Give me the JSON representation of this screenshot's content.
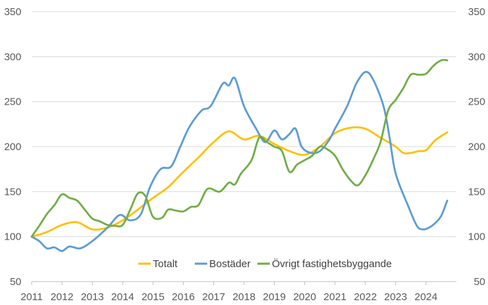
{
  "chart_data": {
    "type": "line",
    "title": "",
    "xlabel": "",
    "ylabel": "",
    "ylim": [
      50,
      350
    ],
    "y_ticks": [
      50,
      100,
      150,
      200,
      250,
      300,
      350
    ],
    "y_ticks_right": [
      50,
      100,
      150,
      200,
      250,
      300,
      350
    ],
    "xlim": [
      2011,
      2025
    ],
    "x_ticks": [
      "2011",
      "2012",
      "2013",
      "2014",
      "2015",
      "2016",
      "2017",
      "2018",
      "2019",
      "2020",
      "2021",
      "2022",
      "2023",
      "2024"
    ],
    "grid": "horizontal",
    "legend_position": "bottom-inside",
    "series": [
      {
        "name": "Totalt",
        "color": "#FFC000",
        "points": [
          [
            2011.0,
            100
          ],
          [
            2011.5,
            105
          ],
          [
            2012.0,
            113
          ],
          [
            2012.5,
            116
          ],
          [
            2013.0,
            108
          ],
          [
            2013.5,
            110
          ],
          [
            2014.0,
            118
          ],
          [
            2014.5,
            130
          ],
          [
            2015.0,
            143
          ],
          [
            2015.5,
            155
          ],
          [
            2016.0,
            172
          ],
          [
            2016.5,
            188
          ],
          [
            2017.0,
            205
          ],
          [
            2017.5,
            217
          ],
          [
            2018.0,
            208
          ],
          [
            2018.5,
            212
          ],
          [
            2019.0,
            203
          ],
          [
            2019.5,
            195
          ],
          [
            2020.0,
            191
          ],
          [
            2020.5,
            200
          ],
          [
            2021.0,
            215
          ],
          [
            2021.5,
            221
          ],
          [
            2022.0,
            220
          ],
          [
            2022.5,
            210
          ],
          [
            2023.0,
            200
          ],
          [
            2023.25,
            193
          ],
          [
            2023.5,
            193
          ],
          [
            2023.75,
            195
          ],
          [
            2024.0,
            196
          ],
          [
            2024.3,
            207
          ],
          [
            2024.7,
            216
          ]
        ]
      },
      {
        "name": "Bostäder",
        "color": "#5B9BD5",
        "points": [
          [
            2011.0,
            100
          ],
          [
            2011.25,
            95
          ],
          [
            2011.5,
            87
          ],
          [
            2011.75,
            88
          ],
          [
            2012.0,
            84
          ],
          [
            2012.25,
            89
          ],
          [
            2012.6,
            87
          ],
          [
            2013.0,
            95
          ],
          [
            2013.5,
            110
          ],
          [
            2013.9,
            124
          ],
          [
            2014.25,
            118
          ],
          [
            2014.6,
            125
          ],
          [
            2014.9,
            155
          ],
          [
            2015.25,
            175
          ],
          [
            2015.6,
            178
          ],
          [
            2015.9,
            200
          ],
          [
            2016.2,
            222
          ],
          [
            2016.6,
            240
          ],
          [
            2016.9,
            245
          ],
          [
            2017.3,
            270
          ],
          [
            2017.5,
            268
          ],
          [
            2017.7,
            276
          ],
          [
            2018.0,
            245
          ],
          [
            2018.4,
            220
          ],
          [
            2018.7,
            205
          ],
          [
            2019.0,
            218
          ],
          [
            2019.25,
            208
          ],
          [
            2019.5,
            214
          ],
          [
            2019.7,
            220
          ],
          [
            2019.9,
            200
          ],
          [
            2020.2,
            193
          ],
          [
            2020.5,
            195
          ],
          [
            2020.8,
            207
          ],
          [
            2021.0,
            220
          ],
          [
            2021.4,
            245
          ],
          [
            2021.7,
            270
          ],
          [
            2022.0,
            283
          ],
          [
            2022.25,
            275
          ],
          [
            2022.6,
            245
          ],
          [
            2022.8,
            210
          ],
          [
            2023.0,
            170
          ],
          [
            2023.4,
            135
          ],
          [
            2023.7,
            112
          ],
          [
            2023.9,
            108
          ],
          [
            2024.1,
            110
          ],
          [
            2024.3,
            115
          ],
          [
            2024.5,
            123
          ],
          [
            2024.7,
            140
          ]
        ]
      },
      {
        "name": "Övrigt fastighetsbyggande",
        "color": "#70AD47",
        "points": [
          [
            2011.0,
            100
          ],
          [
            2011.25,
            112
          ],
          [
            2011.5,
            125
          ],
          [
            2011.75,
            135
          ],
          [
            2012.0,
            147
          ],
          [
            2012.25,
            143
          ],
          [
            2012.5,
            140
          ],
          [
            2012.75,
            130
          ],
          [
            2013.0,
            120
          ],
          [
            2013.25,
            117
          ],
          [
            2013.5,
            113
          ],
          [
            2013.75,
            112
          ],
          [
            2014.0,
            113
          ],
          [
            2014.25,
            130
          ],
          [
            2014.5,
            148
          ],
          [
            2014.75,
            145
          ],
          [
            2015.0,
            122
          ],
          [
            2015.3,
            121
          ],
          [
            2015.5,
            130
          ],
          [
            2015.75,
            129
          ],
          [
            2016.0,
            128
          ],
          [
            2016.25,
            133
          ],
          [
            2016.5,
            135
          ],
          [
            2016.8,
            153
          ],
          [
            2017.2,
            150
          ],
          [
            2017.5,
            160
          ],
          [
            2017.7,
            158
          ],
          [
            2017.9,
            170
          ],
          [
            2018.25,
            185
          ],
          [
            2018.5,
            210
          ],
          [
            2018.75,
            205
          ],
          [
            2019.0,
            200
          ],
          [
            2019.25,
            195
          ],
          [
            2019.5,
            172
          ],
          [
            2019.75,
            180
          ],
          [
            2020.0,
            185
          ],
          [
            2020.25,
            190
          ],
          [
            2020.5,
            200
          ],
          [
            2020.75,
            197
          ],
          [
            2021.0,
            190
          ],
          [
            2021.25,
            175
          ],
          [
            2021.5,
            163
          ],
          [
            2021.75,
            157
          ],
          [
            2022.0,
            168
          ],
          [
            2022.25,
            185
          ],
          [
            2022.5,
            205
          ],
          [
            2022.75,
            240
          ],
          [
            2023.0,
            252
          ],
          [
            2023.25,
            265
          ],
          [
            2023.5,
            280
          ],
          [
            2023.75,
            280
          ],
          [
            2024.0,
            281
          ],
          [
            2024.25,
            290
          ],
          [
            2024.5,
            296
          ],
          [
            2024.7,
            296
          ]
        ]
      }
    ]
  }
}
